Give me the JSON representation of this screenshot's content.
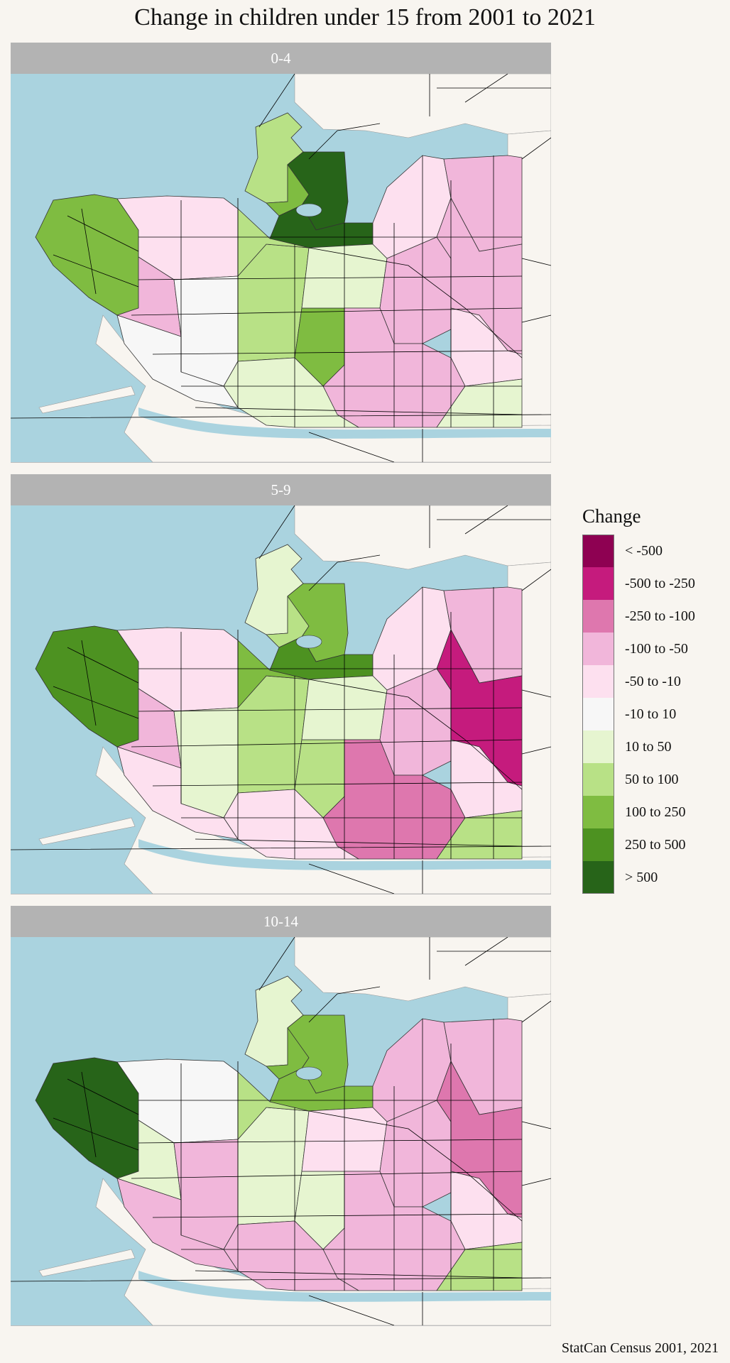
{
  "title": "Change in children under 15 from 2001 to 2021",
  "source": "StatCan Census 2001, 2021",
  "colors": {
    "water": "#aad3df",
    "land": "#f8f5f0",
    "strip": "#b3b3b3",
    "road": "#000000"
  },
  "legend": {
    "title": "Change",
    "items": [
      {
        "label": "< -500",
        "color": "#8e0152"
      },
      {
        "label": "-500 to -250",
        "color": "#c51b7d"
      },
      {
        "label": "-250 to -100",
        "color": "#de77ae"
      },
      {
        "label": "-100 to -50",
        "color": "#f1b6da"
      },
      {
        "label": "-50 to -10",
        "color": "#fde0ef"
      },
      {
        "label": "-10 to 10",
        "color": "#f7f7f7"
      },
      {
        "label": "10 to 50",
        "color": "#e6f5d0"
      },
      {
        "label": "50 to 100",
        "color": "#b8e186"
      },
      {
        "label": "100 to 250",
        "color": "#7fbc41"
      },
      {
        "label": "250 to 500",
        "color": "#4d9221"
      },
      {
        "label": "> 500",
        "color": "#276419"
      }
    ]
  },
  "panels": [
    {
      "label": "0-4",
      "region_classes": {
        "pointgrey": 8,
        "park": 7,
        "downtown": 10,
        "westend": 8,
        "falsecreek": 10,
        "kits": 4,
        "dunbar": 3,
        "kerrisdale": 5,
        "shaughnessy": 7,
        "oakridge": 8,
        "fairview": 7,
        "mountpleasant": 6,
        "grandview": 4,
        "hastings": 3,
        "renfrew": 3,
        "kensington": 3,
        "sunset": 3,
        "victoriafraser": 4,
        "killarney": 6,
        "marpole": 6,
        "southlands": 5
      }
    },
    {
      "label": "5-9",
      "region_classes": {
        "pointgrey": 9,
        "park": 6,
        "downtown": 8,
        "westend": 7,
        "falsecreek": 9,
        "kits": 4,
        "dunbar": 3,
        "kerrisdale": 6,
        "shaughnessy": 7,
        "oakridge": 7,
        "fairview": 8,
        "mountpleasant": 6,
        "grandview": 4,
        "hastings": 3,
        "renfrew": 1,
        "kensington": 3,
        "sunset": 2,
        "victoriafraser": 4,
        "killarney": 7,
        "marpole": 4,
        "southlands": 4
      }
    },
    {
      "label": "10-14",
      "region_classes": {
        "pointgrey": 10,
        "park": 6,
        "downtown": 8,
        "westend": 8,
        "falsecreek": 8,
        "kits": 5,
        "dunbar": 6,
        "kerrisdale": 3,
        "shaughnessy": 6,
        "oakridge": 6,
        "fairview": 7,
        "mountpleasant": 4,
        "grandview": 3,
        "hastings": 3,
        "renfrew": 2,
        "kensington": 3,
        "sunset": 3,
        "victoriafraser": 4,
        "killarney": 7,
        "marpole": 3,
        "southlands": 3
      }
    }
  ]
}
